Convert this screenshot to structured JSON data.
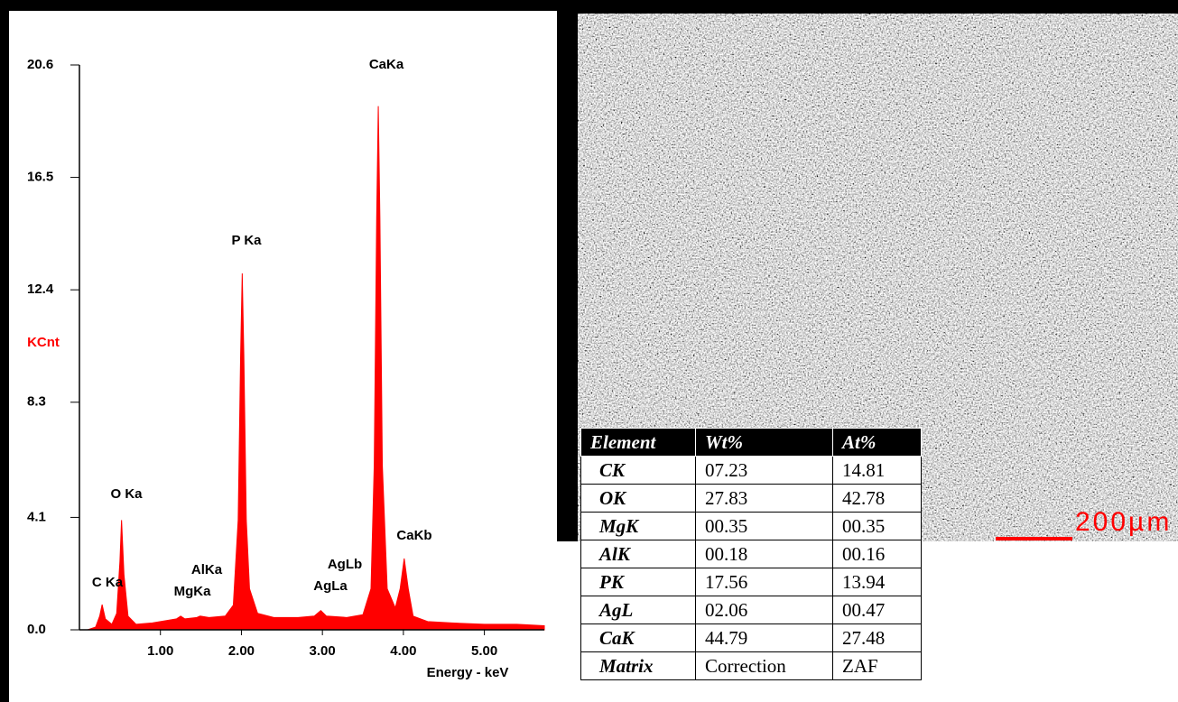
{
  "chart_data": {
    "type": "area",
    "color": "#ff0000",
    "y_label": "KCnt",
    "x_label": "Energy - keV",
    "x": [
      0.1,
      0.2,
      0.25,
      0.28,
      0.32,
      0.4,
      0.46,
      0.5,
      0.52,
      0.55,
      0.6,
      0.7,
      0.9,
      1.1,
      1.2,
      1.25,
      1.3,
      1.45,
      1.49,
      1.6,
      1.8,
      1.9,
      1.96,
      1.99,
      2.01,
      2.03,
      2.06,
      2.1,
      2.2,
      2.4,
      2.7,
      2.9,
      2.98,
      3.05,
      3.3,
      3.5,
      3.6,
      3.64,
      3.67,
      3.69,
      3.71,
      3.74,
      3.8,
      3.9,
      3.96,
      4.01,
      4.06,
      4.12,
      4.3,
      4.6,
      5.0,
      5.4,
      5.74
    ],
    "values": [
      0,
      0.1,
      0.5,
      0.92,
      0.4,
      0.2,
      0.6,
      2.5,
      4.0,
      2.0,
      0.5,
      0.2,
      0.25,
      0.35,
      0.4,
      0.5,
      0.4,
      0.45,
      0.5,
      0.45,
      0.5,
      0.9,
      4.0,
      10.0,
      13.0,
      10.0,
      4.0,
      1.5,
      0.6,
      0.45,
      0.45,
      0.5,
      0.7,
      0.5,
      0.45,
      0.55,
      1.5,
      6.0,
      15.0,
      19.1,
      15.0,
      6.0,
      1.5,
      0.8,
      1.5,
      2.6,
      1.5,
      0.5,
      0.3,
      0.25,
      0.2,
      0.2,
      0.15
    ],
    "xlim": [
      0,
      5.74
    ],
    "ylim": [
      0,
      20.6
    ],
    "xticks": [
      {
        "value": 1,
        "label": "1.00"
      },
      {
        "value": 2,
        "label": "2.00"
      },
      {
        "value": 3,
        "label": "3.00"
      },
      {
        "value": 4,
        "label": "4.00"
      },
      {
        "value": 5,
        "label": "5.00"
      }
    ],
    "yticks": [
      {
        "value": 0,
        "label": "0.0"
      },
      4.1,
      8.3,
      12.4,
      16.5,
      20.6
    ],
    "annotations": [
      "CaKa",
      "P Ka",
      "O Ka",
      "C Ka",
      "AlKa",
      "MgKa",
      "AgLb",
      "AgLa",
      "CaKb"
    ]
  },
  "image": {
    "scale_bar": "200µm"
  },
  "table": {
    "header": [
      "Element",
      "Wt%",
      "At%"
    ],
    "rows": [
      [
        "CK",
        "07.23",
        "14.81"
      ],
      [
        "OK",
        "27.83",
        "42.78"
      ],
      [
        "MgK",
        "00.35",
        "00.35"
      ],
      [
        "AlK",
        "00.18",
        "00.16"
      ],
      [
        "PK",
        "17.56",
        "13.94"
      ],
      [
        "AgL",
        "02.06",
        "00.47"
      ],
      [
        "CaK",
        "44.79",
        "27.48"
      ],
      [
        "Matrix",
        "Correction",
        "ZAF"
      ]
    ]
  }
}
